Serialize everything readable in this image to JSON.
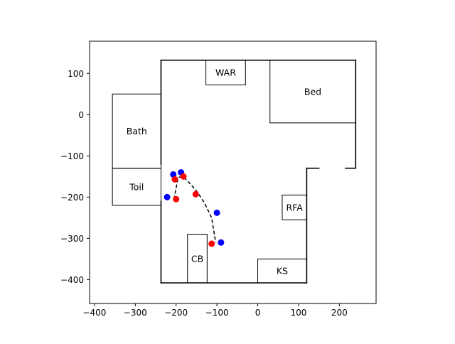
{
  "chart_data": {
    "type": "scatter",
    "title": "",
    "xlabel": "",
    "ylabel": "",
    "xlim": [
      -412,
      290
    ],
    "ylim": [
      -458,
      178
    ],
    "grid": false,
    "xticks": [
      -400,
      -300,
      -200,
      -100,
      0,
      100,
      200
    ],
    "yticks": [
      -400,
      -300,
      -200,
      -100,
      0,
      100
    ],
    "xtick_labels": [
      "−400",
      "−300",
      "−200",
      "−100",
      "0",
      "100",
      "200"
    ],
    "ytick_labels": [
      "−400",
      "−300",
      "−200",
      "−100",
      "0",
      "100"
    ],
    "walls": [
      [
        [
          -237,
          132
        ],
        [
          240,
          132
        ]
      ],
      [
        [
          240,
          132
        ],
        [
          240,
          -130
        ]
      ],
      [
        [
          240,
          -130
        ],
        [
          215,
          -130
        ]
      ],
      [
        [
          150,
          -130
        ],
        [
          120,
          -130
        ]
      ],
      [
        [
          120,
          -130
        ],
        [
          120,
          -408
        ]
      ],
      [
        [
          120,
          -408
        ],
        [
          -237,
          -408
        ]
      ],
      [
        [
          -237,
          -408
        ],
        [
          -237,
          -210
        ]
      ],
      [
        [
          -237,
          -120
        ],
        [
          -237,
          132
        ]
      ]
    ],
    "rooms": [
      {
        "label": "WAR",
        "x0": -127,
        "x1": -30,
        "y0": 72,
        "y1": 132
      },
      {
        "label": "Bed",
        "x0": 30,
        "x1": 240,
        "y0": -20,
        "y1": 132
      },
      {
        "label": "Bath",
        "x0": -356,
        "x1": -237,
        "y0": -130,
        "y1": 50
      },
      {
        "label": "Toil",
        "x0": -356,
        "x1": -237,
        "y0": -220,
        "y1": -130
      },
      {
        "label": "RFA",
        "x0": 60,
        "x1": 120,
        "y0": -255,
        "y1": -195
      },
      {
        "label": "CB",
        "x0": -172,
        "x1": -124,
        "y0": -408,
        "y1": -290
      },
      {
        "label": "KS",
        "x0": 0,
        "x1": 120,
        "y0": -408,
        "y1": -350
      }
    ],
    "path": {
      "style": "dashed",
      "color": "#000000",
      "x": [
        -205,
        -195,
        -183,
        -168,
        -150,
        -130,
        -113,
        -103
      ],
      "y": [
        -205,
        -152,
        -150,
        -165,
        -185,
        -215,
        -250,
        -310
      ]
    },
    "series": [
      {
        "color": "#0000ff",
        "x": [
          -222,
          -207,
          -188,
          -100,
          -90
        ],
        "y": [
          -200,
          -145,
          -140,
          -238,
          -310
        ]
      },
      {
        "color": "#ff0000",
        "x": [
          -200,
          -203,
          -182,
          -152,
          -113
        ],
        "y": [
          -205,
          -157,
          -150,
          -193,
          -313
        ]
      }
    ]
  }
}
